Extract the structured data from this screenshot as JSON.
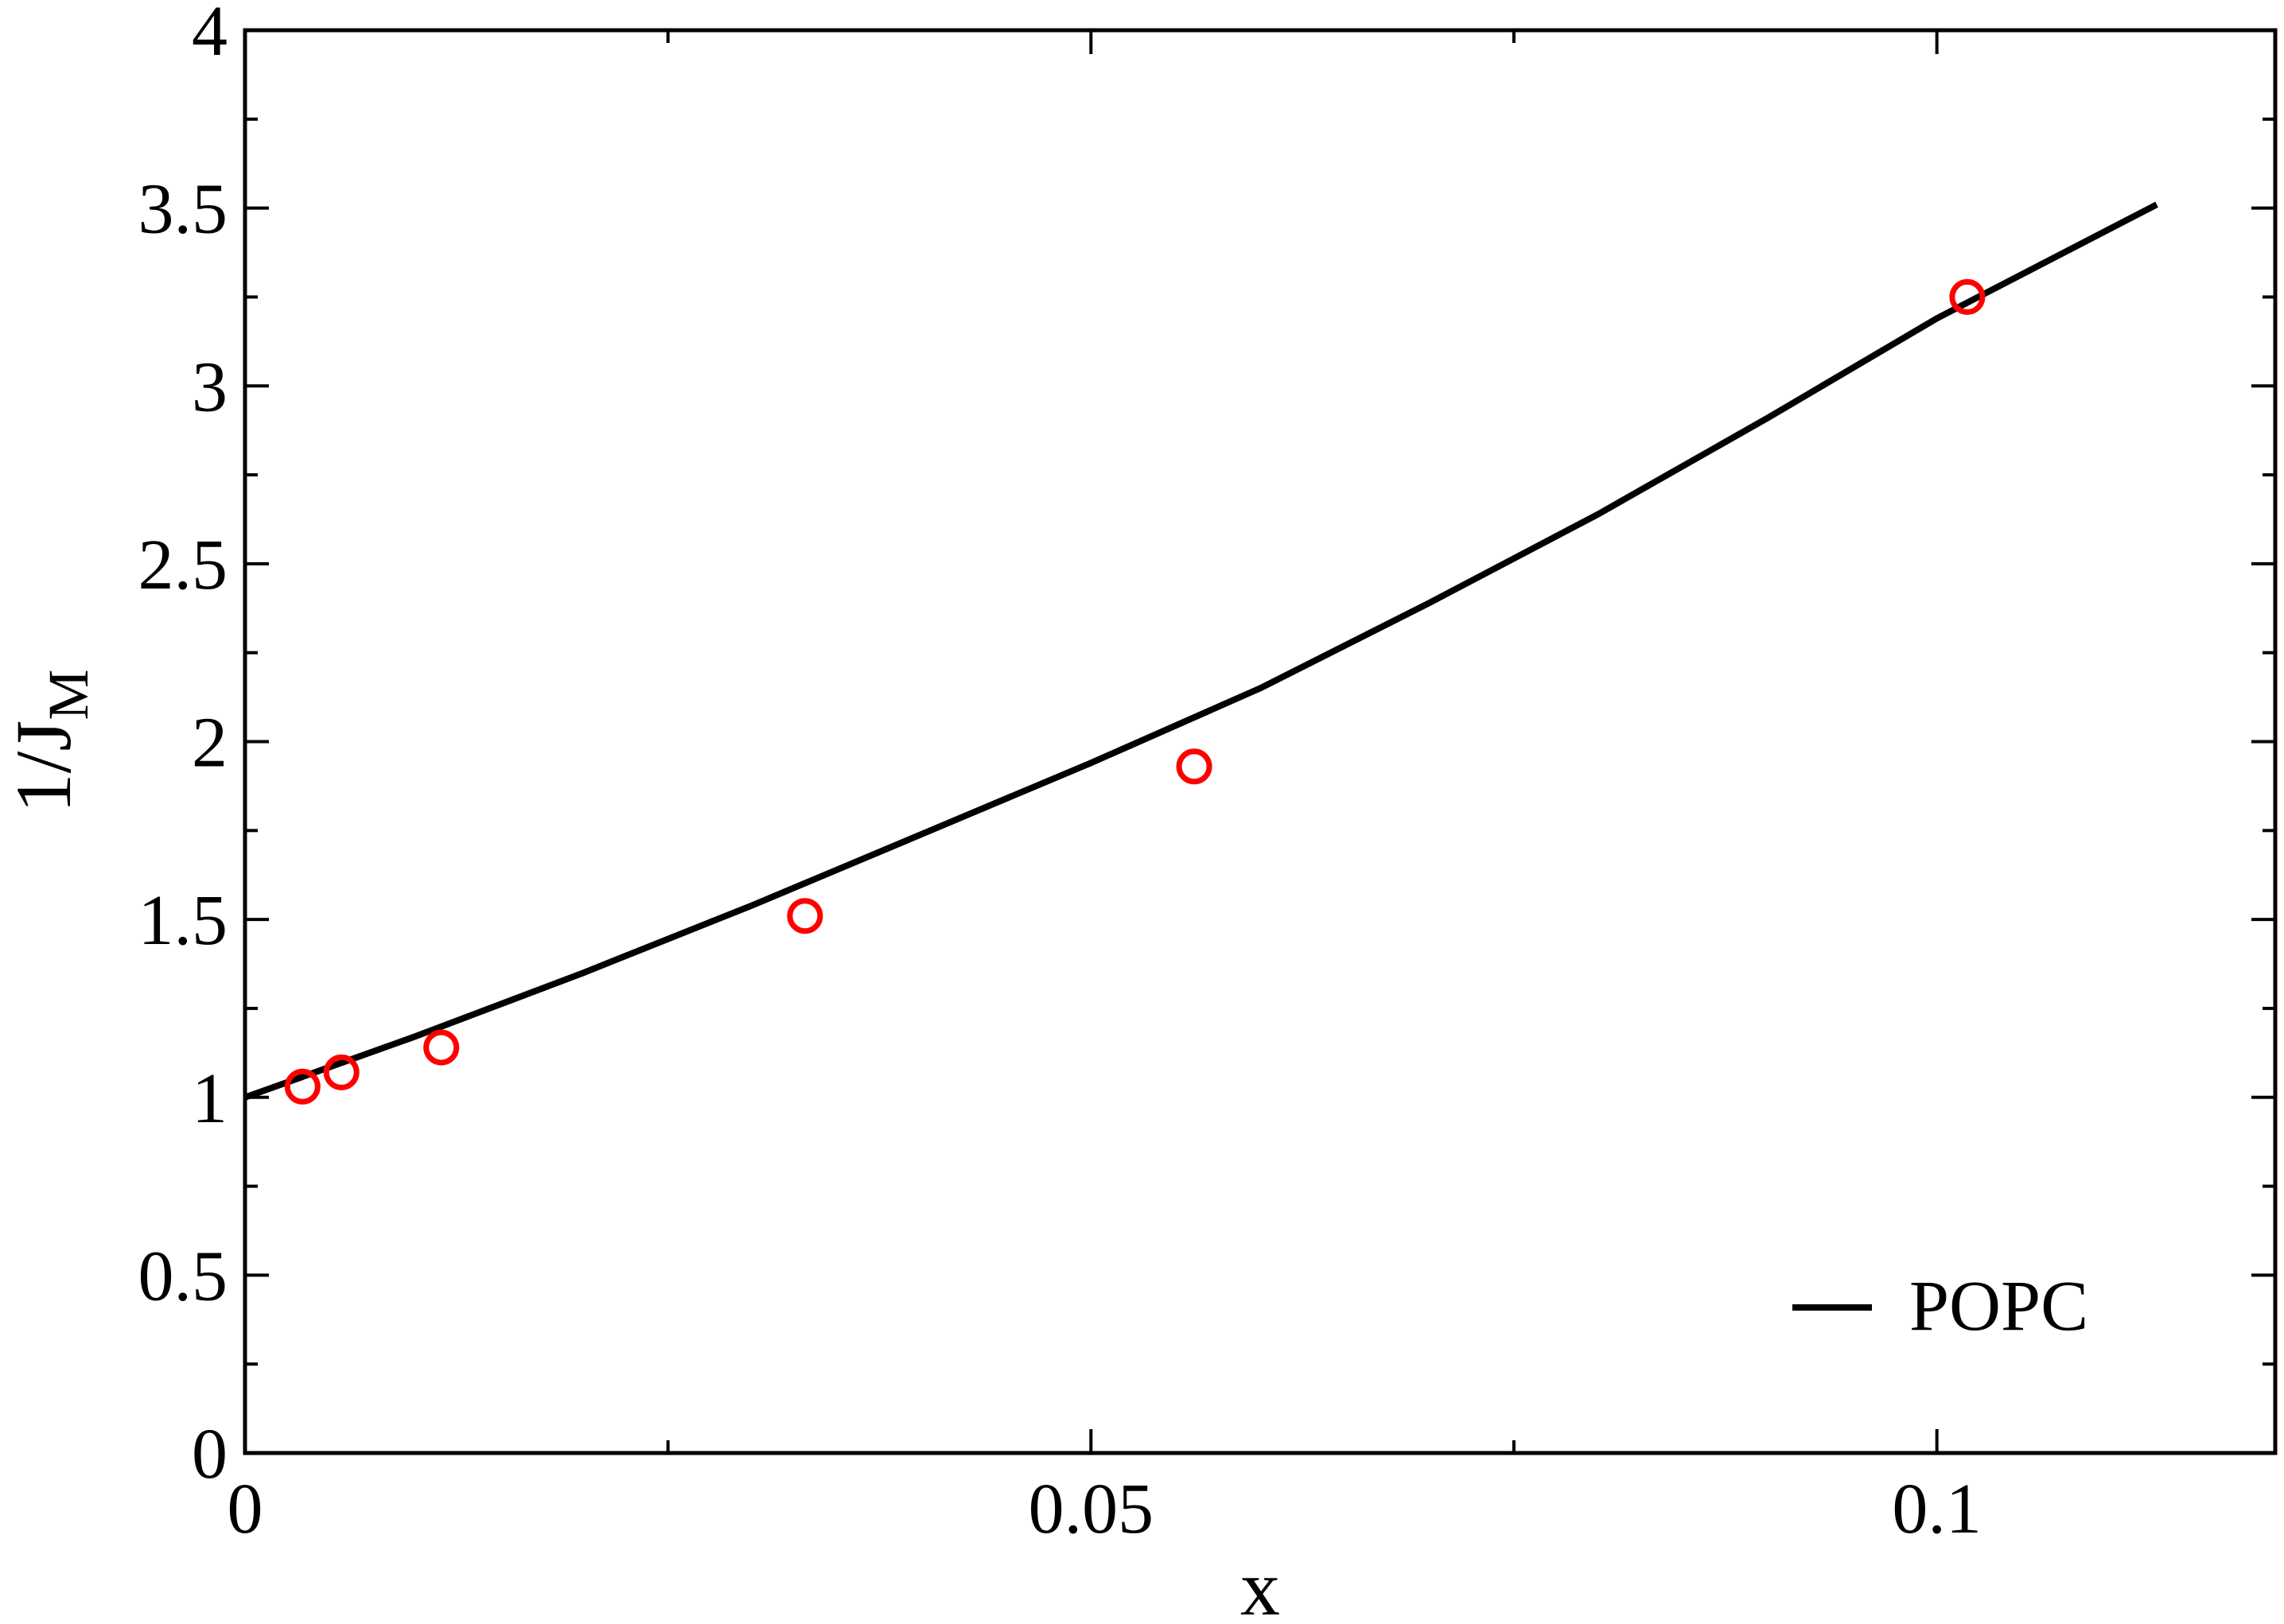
{
  "chart_data": {
    "type": "scatter",
    "title": "",
    "xlabel": "x",
    "ylabel": {
      "main": "1/J",
      "sub": "M"
    },
    "xlim": [
      0,
      0.12
    ],
    "ylim": [
      0,
      4
    ],
    "x_ticks": [
      {
        "value": 0,
        "label": "0"
      },
      {
        "value": 0.05,
        "label": "0.05"
      },
      {
        "value": 0.1,
        "label": "0.1"
      }
    ],
    "x_minor_ticks": [
      0.025,
      0.075
    ],
    "y_ticks": [
      {
        "value": 0,
        "label": "0"
      },
      {
        "value": 0.5,
        "label": "0.5"
      },
      {
        "value": 1,
        "label": "1"
      },
      {
        "value": 1.5,
        "label": "1.5"
      },
      {
        "value": 2,
        "label": "2"
      },
      {
        "value": 2.5,
        "label": "2.5"
      },
      {
        "value": 3,
        "label": "3"
      },
      {
        "value": 3.5,
        "label": "3.5"
      },
      {
        "value": 4,
        "label": "4"
      }
    ],
    "y_minor_ticks": [
      0.25,
      0.75,
      1.25,
      1.75,
      2.25,
      2.75,
      3.25,
      3.75
    ],
    "grid": false,
    "legend_position": "bottom-right",
    "series": [
      {
        "name": "POPC",
        "kind": "line",
        "color": "#000000",
        "x": [
          0,
          0.01,
          0.02,
          0.03,
          0.04,
          0.05,
          0.06,
          0.07,
          0.08,
          0.09,
          0.1,
          0.113
        ],
        "y": [
          1.0,
          1.17,
          1.35,
          1.54,
          1.74,
          1.94,
          2.15,
          2.39,
          2.64,
          2.91,
          3.19,
          3.51
        ]
      },
      {
        "kind": "markers",
        "marker": "open-circle",
        "color": "#ff0000",
        "x": [
          0.0034,
          0.0057,
          0.0116,
          0.0331,
          0.0561,
          0.1018
        ],
        "y": [
          1.03,
          1.07,
          1.14,
          1.51,
          1.93,
          3.25
        ]
      }
    ]
  }
}
